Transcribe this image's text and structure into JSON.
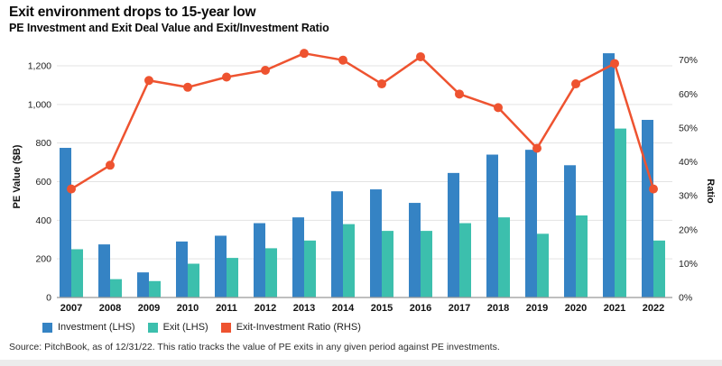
{
  "header": {
    "title": "Exit environment drops to 15-year low",
    "subtitle": "PE Investment and Exit Deal Value and Exit/Investment Ratio"
  },
  "chart_data": {
    "type": "combo-bar-line",
    "categories": [
      "2007",
      "2008",
      "2009",
      "2010",
      "2011",
      "2012",
      "2013",
      "2014",
      "2015",
      "2016",
      "2017",
      "2018",
      "2019",
      "2020",
      "2021",
      "2022"
    ],
    "series": [
      {
        "name": "Investment (LHS)",
        "type": "bar",
        "axis": "left",
        "color": "#3583c4",
        "values": [
          775,
          275,
          130,
          290,
          320,
          385,
          415,
          550,
          560,
          490,
          645,
          740,
          765,
          685,
          1265,
          920
        ]
      },
      {
        "name": "Exit (LHS)",
        "type": "bar",
        "axis": "left",
        "color": "#3cbfad",
        "values": [
          250,
          95,
          85,
          175,
          205,
          255,
          295,
          380,
          345,
          345,
          385,
          415,
          330,
          425,
          875,
          295
        ]
      },
      {
        "name": "Exit-Investment Ratio (RHS)",
        "type": "line",
        "axis": "right",
        "color": "#ee5330",
        "values": [
          32,
          39,
          64,
          62,
          65,
          67,
          72,
          70,
          63,
          71,
          60,
          56,
          44,
          63,
          69,
          32
        ]
      }
    ],
    "left_axis": {
      "label": "PE Value ($B)",
      "min": 0,
      "max": 1200,
      "ticks": [
        "0",
        "200",
        "400",
        "600",
        "800",
        "1,000",
        "1,200"
      ]
    },
    "right_axis": {
      "label": "Ratio",
      "min": 0,
      "max": 70,
      "ticks": [
        "0%",
        "10%",
        "20%",
        "30%",
        "40%",
        "50%",
        "60%",
        "70%"
      ]
    },
    "grid": "horizontal",
    "legend_position": "bottom",
    "colors": {
      "grid": "#e3e3e3",
      "axis_line": "#999999",
      "tick_text": "#1c1c1c"
    }
  },
  "source": "Source: PitchBook, as of 12/31/22. This ratio tracks the value of PE exits in any given period against PE investments."
}
